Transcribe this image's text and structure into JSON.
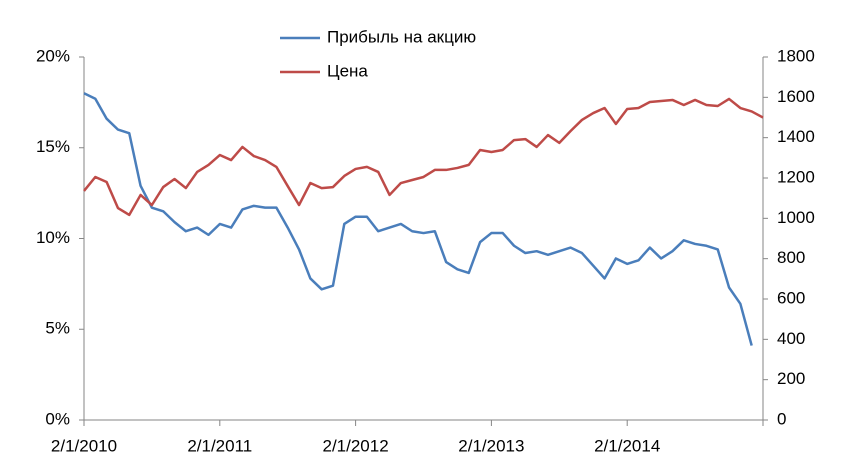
{
  "chart_data": {
    "type": "line",
    "categories": [
      "2/1/2010",
      null,
      null,
      null,
      null,
      null,
      null,
      null,
      null,
      null,
      null,
      null,
      "2/1/2011",
      null,
      null,
      null,
      null,
      null,
      null,
      null,
      null,
      null,
      null,
      null,
      "2/1/2012",
      null,
      null,
      null,
      null,
      null,
      null,
      null,
      null,
      null,
      null,
      null,
      "2/1/2013",
      null,
      null,
      null,
      null,
      null,
      null,
      null,
      null,
      null,
      null,
      null,
      "2/1/2014",
      null,
      null,
      null,
      null,
      null,
      null,
      null,
      null,
      null,
      null,
      null,
      null
    ],
    "series": [
      {
        "name": "Прибыль на акцию",
        "color": "#4a7ebb",
        "values": [
          18.0,
          17.7,
          16.6,
          16.0,
          15.8,
          12.9,
          11.7,
          11.5,
          10.9,
          10.4,
          10.6,
          10.2,
          10.8,
          10.6,
          11.6,
          11.8,
          11.7,
          11.7,
          10.6,
          9.4,
          7.8,
          7.2,
          7.4,
          10.8,
          11.2,
          11.2,
          10.4,
          10.6,
          10.8,
          10.4,
          10.3,
          10.4,
          8.7,
          8.3,
          8.1,
          9.8,
          10.3,
          10.3,
          9.6,
          9.2,
          9.3,
          9.1,
          9.3,
          9.5,
          9.2,
          8.5,
          7.8,
          8.9,
          8.6,
          8.8,
          9.5,
          8.9,
          9.3,
          9.9,
          9.7,
          9.6,
          9.4,
          7.3,
          6.4,
          4.1,
          null
        ]
      },
      {
        "name": "Цена",
        "color": "#be4b48",
        "axis": "y2",
        "values": [
          1136,
          1205,
          1180,
          1051,
          1017,
          1116,
          1066,
          1155,
          1195,
          1150,
          1230,
          1265,
          1314,
          1289,
          1354,
          1309,
          1289,
          1255,
          1160,
          1066,
          1175,
          1150,
          1155,
          1210,
          1245,
          1255,
          1230,
          1116,
          1175,
          1190,
          1205,
          1240,
          1240,
          1250,
          1265,
          1339,
          1329,
          1339,
          1388,
          1393,
          1354,
          1413,
          1374,
          1433,
          1488,
          1522,
          1547,
          1468,
          1542,
          1547,
          1577,
          1582,
          1587,
          1562,
          1587,
          1562,
          1557,
          1592,
          1547,
          1530,
          1500
        ]
      }
    ],
    "ylim": [
      0,
      20
    ],
    "yticks": [
      {
        "value": 0,
        "label": "0%"
      },
      {
        "value": 5,
        "label": "5%"
      },
      {
        "value": 10,
        "label": "10%"
      },
      {
        "value": 15,
        "label": "15%"
      },
      {
        "value": 20,
        "label": "20%"
      }
    ],
    "y2lim": [
      0,
      1800
    ],
    "y2ticks": [
      0,
      200,
      400,
      600,
      800,
      1000,
      1200,
      1400,
      1600,
      1800
    ],
    "grid": false,
    "legend": "top"
  }
}
